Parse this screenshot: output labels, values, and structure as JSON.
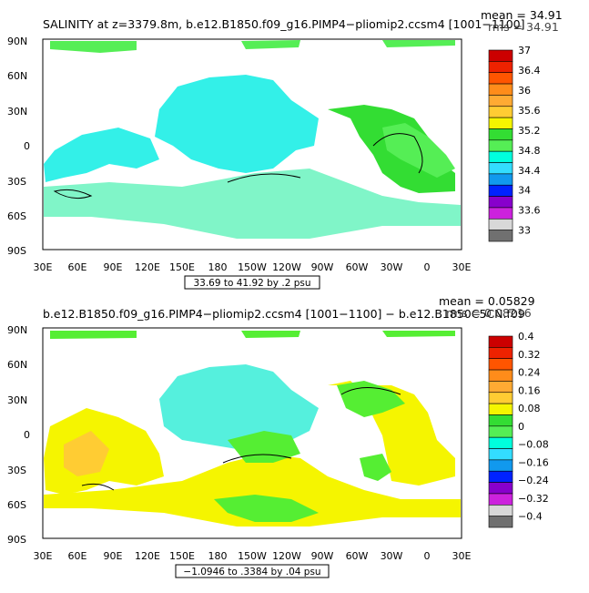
{
  "panels": [
    {
      "title": "SALINITY at z=3379.8m, b.e12.B1850.f09_g16.PIMP4−pliomip2.ccsm4 [1001−1100]",
      "mean_text": "mean = 34.91",
      "rms_text": "rms = 34.91",
      "range_label": "33.69 to 41.92 by .2 psu",
      "colorbar": {
        "labels": [
          "37",
          "36.4",
          "36",
          "35.6",
          "35.2",
          "34.8",
          "34.4",
          "34",
          "33.6",
          "33"
        ],
        "colors": [
          "#cc0000",
          "#ee2200",
          "#ff5500",
          "#ff8c1a",
          "#ffaa33",
          "#ffcc33",
          "#f5f500",
          "#33dd33",
          "#55ee55",
          "#00ffdd",
          "#33ddff",
          "#1199ee",
          "#0022ff",
          "#8800cc",
          "#cc22dd",
          "#d8d8d8",
          "#707070"
        ]
      }
    },
    {
      "title": "b.e12.B1850.f09_g16.PIMP4−pliomip2.ccsm4 [1001−1100] − b.e12.B1850C5CN.f09",
      "mean_text": "mean = 0.05829",
      "rms_text": "rms = 0.08216",
      "range_label": "−1.0946 to .3384 by .04 psu",
      "colorbar": {
        "labels": [
          "0.4",
          "0.32",
          "0.24",
          "0.16",
          "0.08",
          "0",
          "−0.08",
          "−0.16",
          "−0.24",
          "−0.32",
          "−0.4"
        ],
        "colors": [
          "#cc0000",
          "#ee2200",
          "#ff5500",
          "#ff8c1a",
          "#ffaa33",
          "#ffcc33",
          "#f5f500",
          "#33dd33",
          "#55ee55",
          "#00ffdd",
          "#33ddff",
          "#1199ee",
          "#0022ff",
          "#8800cc",
          "#cc22dd",
          "#d8d8d8",
          "#707070"
        ]
      }
    }
  ],
  "axes": {
    "lon_labels": [
      "30E",
      "60E",
      "90E",
      "120E",
      "150E",
      "180",
      "150W",
      "120W",
      "90W",
      "60W",
      "30W",
      "0",
      "30E"
    ],
    "lat_labels": [
      "90N",
      "60N",
      "30N",
      "0",
      "30S",
      "60S",
      "90S"
    ]
  },
  "colors": {
    "ocean_top": "#33f0e8",
    "ocean_top_alt": "#80f5b0",
    "ocean_top_green": "#33dd33",
    "ocean_bottom_cyan": "#55f0dd",
    "ocean_bottom_yellow": "#f5f500",
    "ocean_bottom_orange": "#ffcc33",
    "ocean_bottom_green": "#55ee33"
  }
}
